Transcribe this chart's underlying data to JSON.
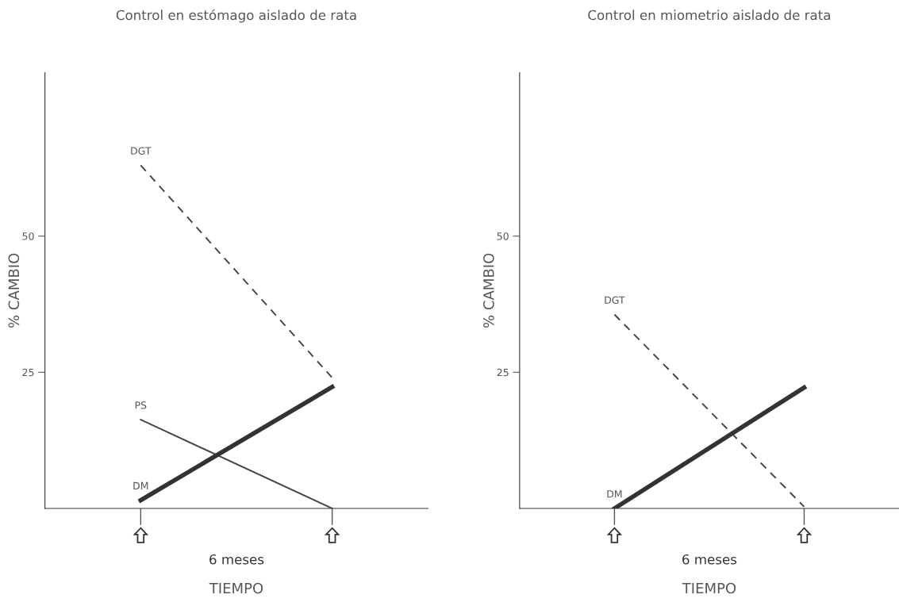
{
  "chart_data": [
    {
      "type": "line",
      "title": "Control en estómago aislado de rata",
      "xlabel": "TIEMPO",
      "ylabel": "% CAMBIO",
      "categories": [
        null,
        null
      ],
      "ylim": [
        0,
        80
      ],
      "yticks": [
        25,
        50
      ],
      "annotations": [
        "6 meses"
      ],
      "series": [
        {
          "name": "DGT",
          "color": "#444444",
          "line_style": "dashed",
          "values": [
            63,
            24
          ]
        },
        {
          "name": "PS",
          "color": "#444444",
          "line_style": "solid",
          "values": [
            16.3,
            0
          ]
        },
        {
          "name": "DM",
          "color": "#333333",
          "line_style": "solid",
          "values": [
            1.5,
            22.3
          ]
        }
      ]
    },
    {
      "type": "line",
      "title": "Control en miometrio aislado de rata",
      "xlabel": "TIEMPO",
      "ylabel": "% CAMBIO",
      "categories": [
        null,
        null
      ],
      "ylim": [
        0,
        80
      ],
      "yticks": [
        25,
        50
      ],
      "annotations": [
        "6 meses"
      ],
      "series": [
        {
          "name": "DGT",
          "color": "#444444",
          "line_style": "dashed",
          "values": [
            35.6,
            0.3
          ]
        },
        {
          "name": "DM",
          "color": "#333333",
          "line_style": "solid",
          "values": [
            0,
            22.2
          ]
        }
      ]
    }
  ]
}
